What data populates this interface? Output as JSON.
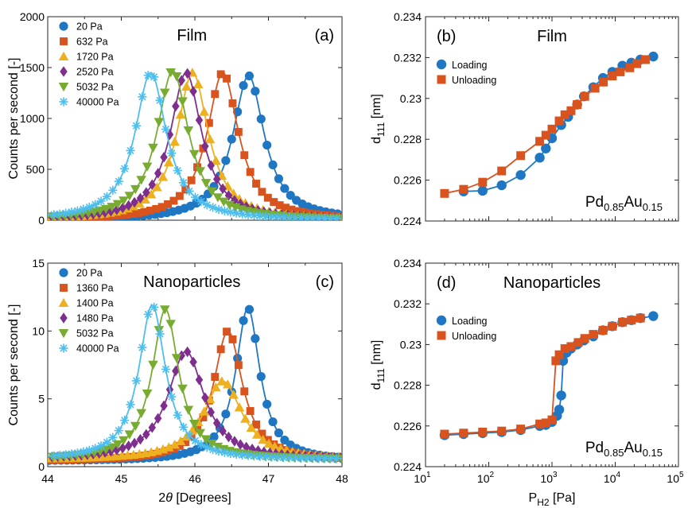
{
  "colors": {
    "blue": "#1f77c4",
    "orange": "#d9531e",
    "yellow": "#edb120",
    "purple": "#7e2f8e",
    "green": "#77ac30",
    "cyan": "#4dbeee"
  },
  "chart_data": [
    {
      "panel": "a",
      "type": "line",
      "title": "Film",
      "letter": "(a)",
      "xlabel_pre": "2",
      "xlabel_theta": "θ",
      "xlabel_post": " [Degrees]",
      "ylabel": "Counts per second [-]",
      "xlim": [
        44,
        48
      ],
      "ylim": [
        0,
        2000
      ],
      "yticks": [
        "0",
        "500",
        "1000",
        "1500",
        "2000"
      ],
      "xticks": [],
      "legend_position": "top-left",
      "series": [
        {
          "name": " 20 Pa",
          "marker": "circle",
          "color_key": "blue",
          "center": 46.73,
          "peak": 1420,
          "width": 0.26
        },
        {
          "name": "632 Pa",
          "marker": "square",
          "color_key": "orange",
          "center": 46.38,
          "peak": 1450,
          "width": 0.26
        },
        {
          "name": "1720 Pa",
          "marker": "triangle-up",
          "color_key": "yellow",
          "center": 45.97,
          "peak": 1450,
          "width": 0.26
        },
        {
          "name": "2520 Pa",
          "marker": "diamond",
          "color_key": "purple",
          "center": 45.88,
          "peak": 1450,
          "width": 0.26
        },
        {
          "name": "5032 Pa",
          "marker": "triangle-down",
          "color_key": "green",
          "center": 45.7,
          "peak": 1470,
          "width": 0.26
        },
        {
          "name": "40000 Pa",
          "marker": "asterisk",
          "color_key": "cyan",
          "center": 45.4,
          "peak": 1450,
          "width": 0.26
        }
      ]
    },
    {
      "panel": "b",
      "type": "line",
      "title": "Film",
      "letter": "(b)",
      "xlabel": "",
      "ylabel_main": "d",
      "ylabel_sub": "111",
      "ylabel_unit": " [nm]",
      "xscale": "log",
      "xlim": [
        10,
        100000
      ],
      "ylim": [
        0.224,
        0.234
      ],
      "yticks": [
        "0.224",
        "0.226",
        "0.228",
        "0.23",
        "0.232",
        "0.234"
      ],
      "formula": {
        "base1": "Pd",
        "sub1": "0.85",
        "base2": "Au",
        "sub2": "0.15"
      },
      "legend_position": "top-left",
      "series": [
        {
          "name": "Loading",
          "marker": "circle",
          "color_key": "blue",
          "x": [
            40,
            80,
            160,
            320,
            640,
            800,
            1000,
            1400,
            1800,
            2500,
            3200,
            4500,
            6400,
            9000,
            13000,
            18000,
            25000,
            40000
          ],
          "y": [
            0.22545,
            0.22548,
            0.22575,
            0.22625,
            0.2271,
            0.22755,
            0.22805,
            0.2287,
            0.2291,
            0.2297,
            0.2301,
            0.23055,
            0.231,
            0.2313,
            0.2316,
            0.23175,
            0.2319,
            0.23205
          ]
        },
        {
          "name": "Unloading",
          "marker": "square",
          "color_key": "orange",
          "x": [
            20,
            40,
            80,
            160,
            320,
            640,
            800,
            1000,
            1300,
            1600,
            2000,
            2500,
            3300,
            4800,
            6500,
            9000,
            12000,
            17000,
            22000,
            30000
          ],
          "y": [
            0.22535,
            0.22555,
            0.2259,
            0.22645,
            0.2272,
            0.2279,
            0.2282,
            0.2285,
            0.2289,
            0.2292,
            0.2294,
            0.2297,
            0.2301,
            0.2305,
            0.2308,
            0.2311,
            0.2313,
            0.2315,
            0.2317,
            0.2319
          ]
        }
      ]
    },
    {
      "panel": "c",
      "type": "line",
      "title": "Nanoparticles",
      "letter": "(c)",
      "xlabel_pre": "2",
      "xlabel_theta": "θ",
      "xlabel_post": " [Degrees]",
      "ylabel": "Counts per second [-]",
      "xlim": [
        44,
        48
      ],
      "ylim": [
        0,
        15
      ],
      "yticks": [
        "0",
        "5",
        "10",
        "15"
      ],
      "xticks": [
        "44",
        "45",
        "46",
        "47",
        "48"
      ],
      "legend_position": "top-left",
      "series": [
        {
          "name": " 20 Pa",
          "marker": "circle",
          "color_key": "blue",
          "center": 46.72,
          "peak": 11.7,
          "width": 0.2,
          "base": 0.4
        },
        {
          "name": "1360 Pa",
          "marker": "square",
          "color_key": "orange",
          "center": 46.45,
          "peak": 10.0,
          "width": 0.24,
          "base": 0.4
        },
        {
          "name": "1400 Pa",
          "marker": "triangle-up",
          "color_key": "yellow",
          "center": 46.38,
          "peak": 6.3,
          "width": 0.32,
          "base": 0.5
        },
        {
          "name": "1480 Pa",
          "marker": "diamond",
          "color_key": "purple",
          "center": 45.88,
          "peak": 8.5,
          "width": 0.3,
          "base": 0.5
        },
        {
          "name": "5032 Pa",
          "marker": "triangle-down",
          "color_key": "green",
          "center": 45.6,
          "peak": 11.6,
          "width": 0.22,
          "base": 0.5
        },
        {
          "name": "40000 Pa",
          "marker": "asterisk",
          "color_key": "cyan",
          "center": 45.42,
          "peak": 11.9,
          "width": 0.22,
          "base": 0.5
        }
      ]
    },
    {
      "panel": "d",
      "type": "line",
      "title": "Nanoparticles",
      "letter": "(d)",
      "xlabel_main": "P",
      "xlabel_sub": "H2",
      "xlabel_unit": " [Pa]",
      "ylabel_main": "d",
      "ylabel_sub": "111",
      "ylabel_unit": " [nm]",
      "xscale": "log",
      "xlim": [
        10,
        100000
      ],
      "ylim": [
        0.224,
        0.234
      ],
      "yticks": [
        "0.224",
        "0.226",
        "0.228",
        "0.23",
        "0.232",
        "0.234"
      ],
      "xticks": [
        {
          "base": "10",
          "exp": "1"
        },
        {
          "base": "10",
          "exp": "2"
        },
        {
          "base": "10",
          "exp": "3"
        },
        {
          "base": "10",
          "exp": "4"
        },
        {
          "base": "10",
          "exp": "5"
        }
      ],
      "formula": {
        "base1": "Pd",
        "sub1": "0.85",
        "base2": "Au",
        "sub2": "0.15"
      },
      "legend_position": "top-left",
      "series": [
        {
          "name": "Loading",
          "marker": "circle",
          "color_key": "blue",
          "x": [
            20,
            40,
            80,
            160,
            320,
            640,
            800,
            1000,
            1200,
            1300,
            1400,
            1500,
            1700,
            2000,
            2500,
            3200,
            4500,
            6400,
            9000,
            13000,
            18000,
            25000,
            40000
          ],
          "y": [
            0.22555,
            0.2256,
            0.22565,
            0.2257,
            0.2258,
            0.226,
            0.22605,
            0.2262,
            0.2265,
            0.2268,
            0.2275,
            0.2292,
            0.2296,
            0.2298,
            0.23,
            0.2302,
            0.2304,
            0.2307,
            0.2309,
            0.2311,
            0.2312,
            0.2313,
            0.2314
          ]
        },
        {
          "name": "Unloading",
          "marker": "square",
          "color_key": "orange",
          "x": [
            20,
            40,
            80,
            160,
            320,
            640,
            800,
            1000,
            1150,
            1300,
            1600,
            2000,
            2600,
            3300,
            4500,
            6400,
            9000,
            13000,
            18000,
            25000
          ],
          "y": [
            0.2256,
            0.22565,
            0.2257,
            0.22575,
            0.22585,
            0.2261,
            0.22615,
            0.2263,
            0.2292,
            0.2295,
            0.2298,
            0.2299,
            0.2301,
            0.2303,
            0.2305,
            0.2307,
            0.2309,
            0.2311,
            0.2312,
            0.2313
          ]
        }
      ]
    }
  ]
}
